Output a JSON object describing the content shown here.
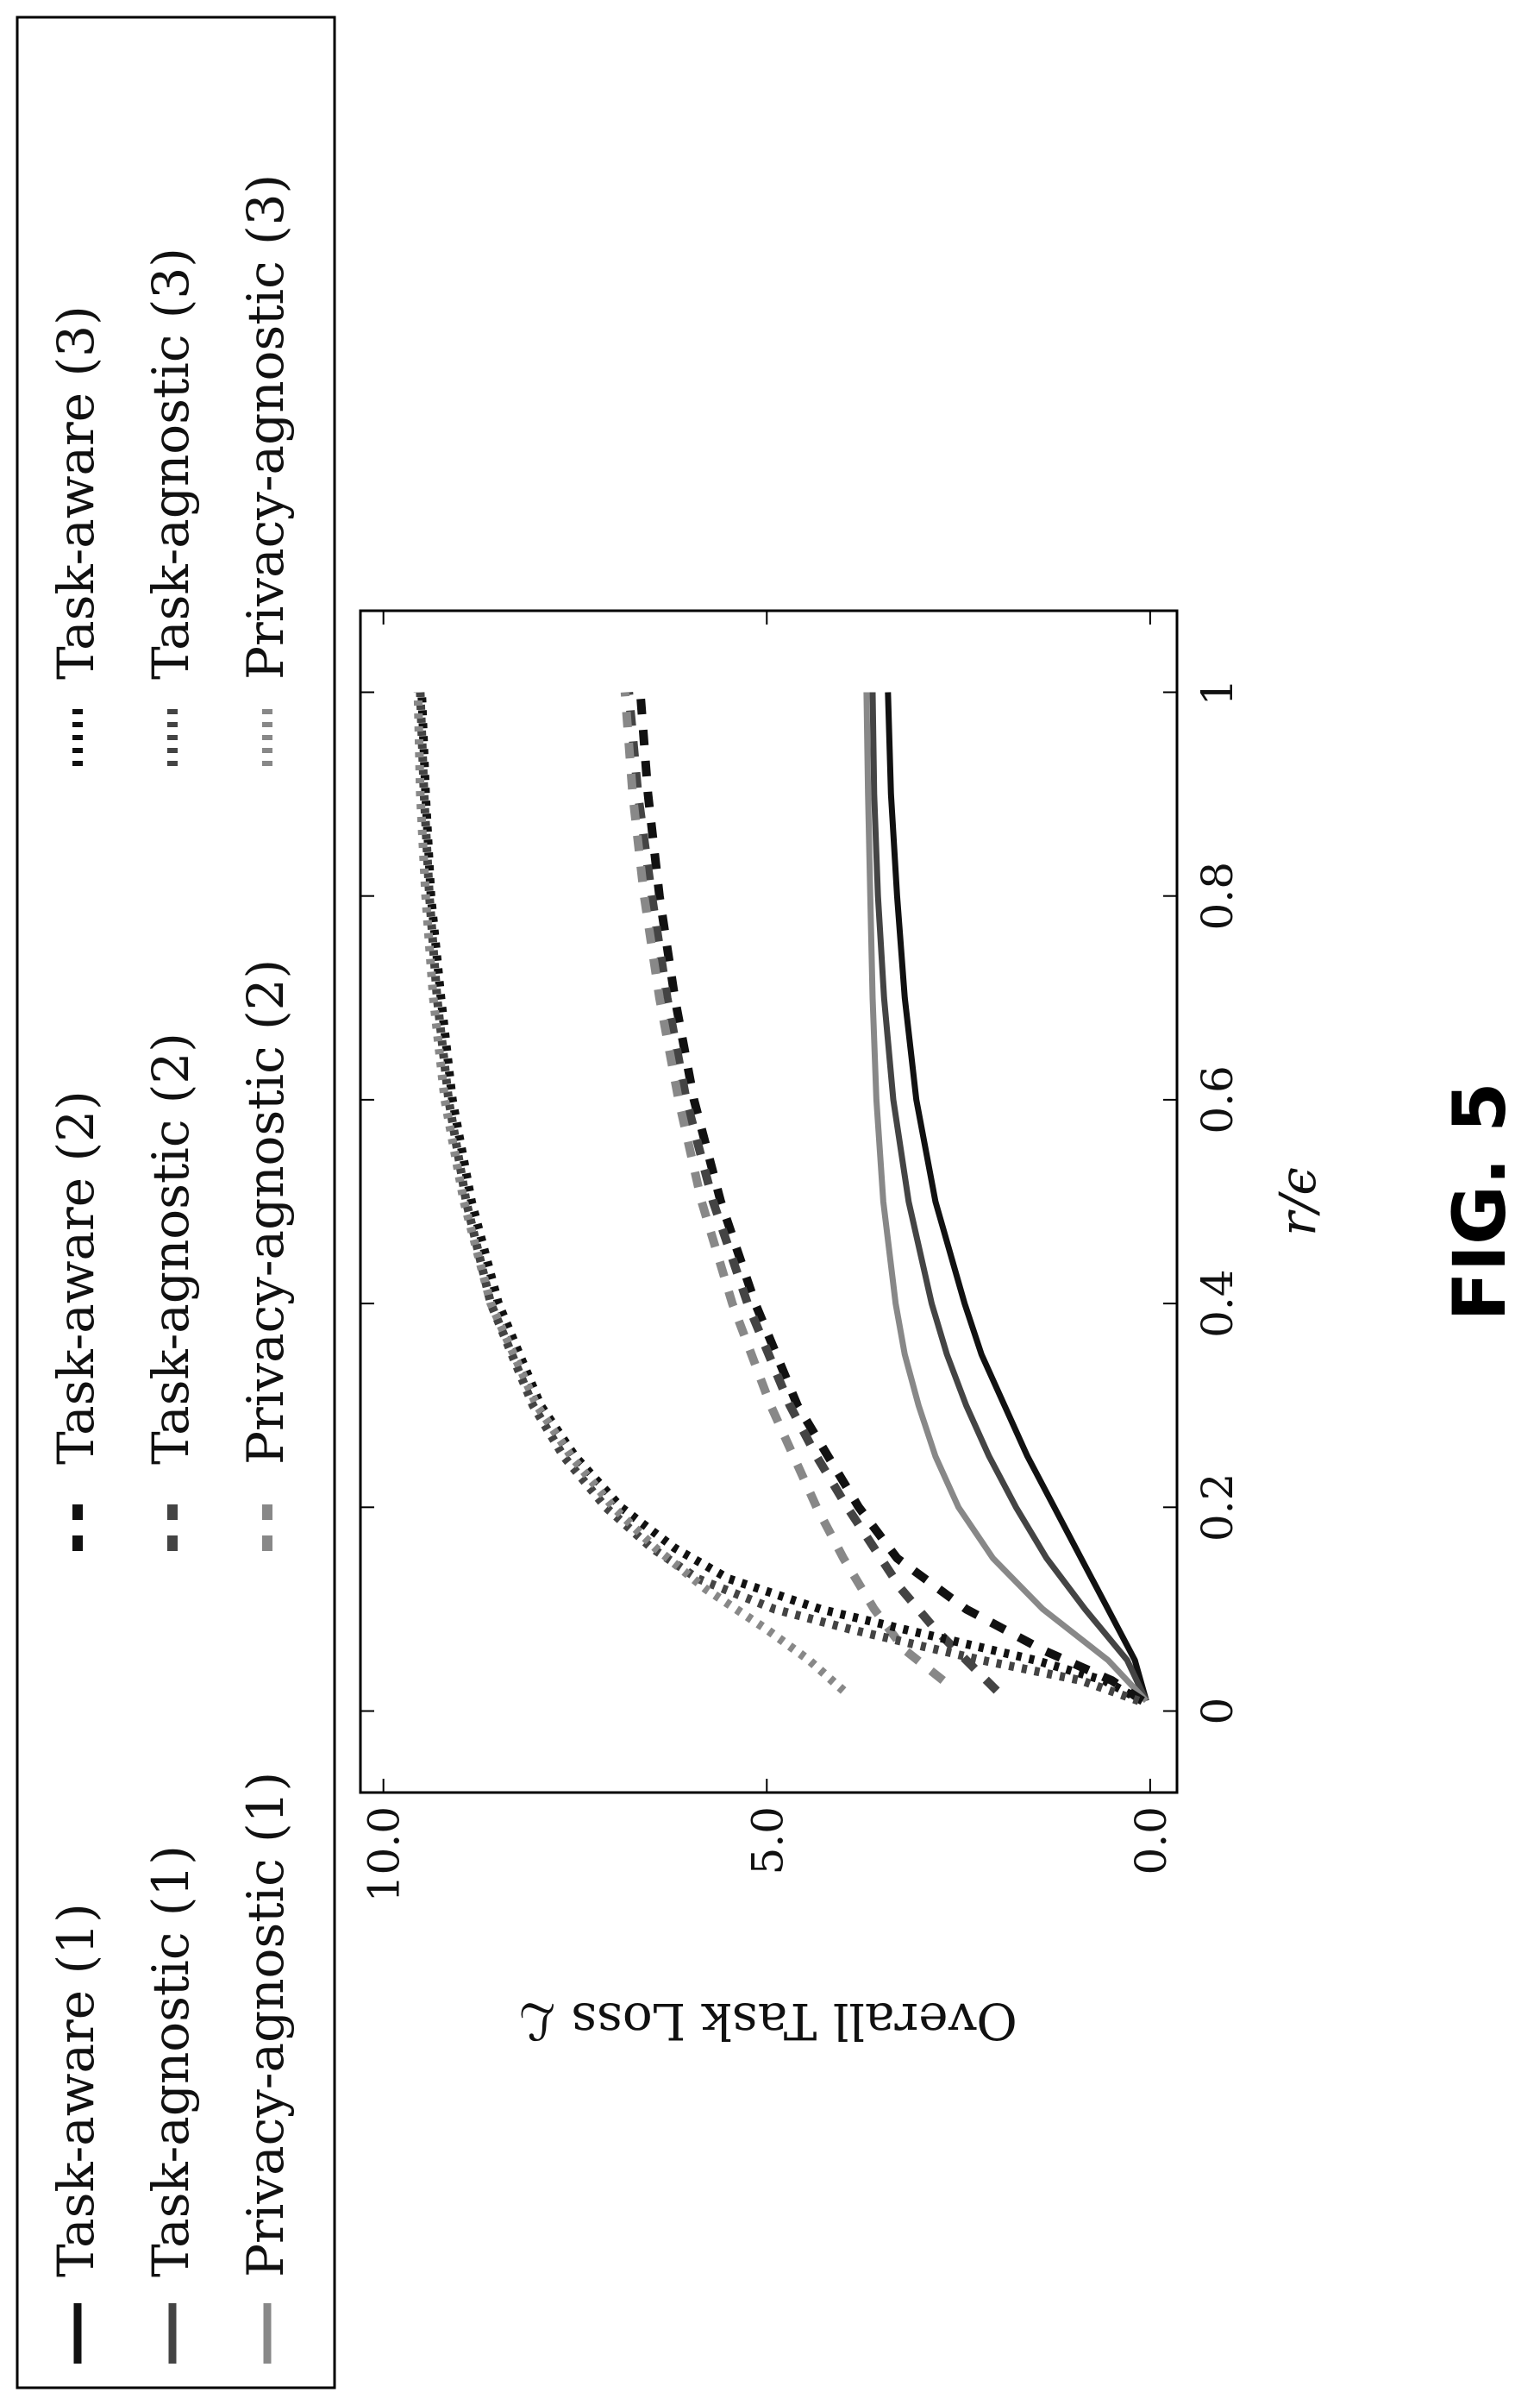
{
  "figure_label": "FIG. 5",
  "chart_data": {
    "type": "line",
    "title": "",
    "xlabel": "r/ϵ",
    "ylabel": "Overall Task Loss ℒ",
    "xlim": [
      -0.08,
      1.08
    ],
    "ylim": [
      -0.35,
      10.3
    ],
    "xticks": [
      0,
      0.2,
      0.4,
      0.6,
      0.8,
      1
    ],
    "xtick_labels": [
      "0",
      "0.2",
      "0.4",
      "0.6",
      "0.8",
      "1"
    ],
    "yticks": [
      0,
      5,
      10
    ],
    "ytick_labels": [
      "0.0",
      "5.0",
      "10.0"
    ],
    "grid": false,
    "legend_position": "top (outside plot)",
    "orientation_note": "figure rotated 90° counter-clockwise on the page",
    "series": [
      {
        "name": "Task-aware (1)",
        "style": "solid",
        "color": "#111111",
        "x": [
          0.01,
          0.05,
          0.1,
          0.15,
          0.2,
          0.25,
          0.3,
          0.35,
          0.4,
          0.5,
          0.6,
          0.7,
          0.8,
          0.9,
          1.0
        ],
        "y": [
          0.05,
          0.2,
          0.55,
          0.9,
          1.25,
          1.6,
          1.9,
          2.2,
          2.42,
          2.8,
          3.05,
          3.2,
          3.3,
          3.38,
          3.42
        ]
      },
      {
        "name": "Task-agnostic (1)",
        "style": "solid",
        "color": "#444444",
        "x": [
          0.01,
          0.05,
          0.1,
          0.15,
          0.2,
          0.25,
          0.3,
          0.35,
          0.4,
          0.5,
          0.6,
          0.7,
          0.8,
          0.9,
          1.0
        ],
        "y": [
          0.05,
          0.3,
          0.85,
          1.35,
          1.75,
          2.1,
          2.4,
          2.65,
          2.85,
          3.15,
          3.35,
          3.47,
          3.55,
          3.6,
          3.62
        ]
      },
      {
        "name": "Privacy-agnostic (1)",
        "style": "solid",
        "color": "#888888",
        "x": [
          0.01,
          0.05,
          0.1,
          0.15,
          0.2,
          0.25,
          0.3,
          0.35,
          0.4,
          0.5,
          0.6,
          0.7,
          0.8,
          0.9,
          1.0
        ],
        "y": [
          0.05,
          0.55,
          1.4,
          2.05,
          2.5,
          2.8,
          3.02,
          3.2,
          3.32,
          3.48,
          3.57,
          3.62,
          3.65,
          3.68,
          3.7
        ]
      },
      {
        "name": "Task-aware (2)",
        "style": "dashed",
        "color": "#111111",
        "x": [
          0.01,
          0.03,
          0.06,
          0.1,
          0.15,
          0.2,
          0.25,
          0.3,
          0.4,
          0.5,
          0.6,
          0.7,
          0.8,
          0.9,
          1.0
        ],
        "y": [
          0.1,
          0.5,
          1.4,
          2.4,
          3.3,
          3.8,
          4.2,
          4.6,
          5.15,
          5.6,
          5.95,
          6.2,
          6.4,
          6.55,
          6.65
        ]
      },
      {
        "name": "Task-agnostic (2)",
        "style": "dashed",
        "color": "#444444",
        "x": [
          0.02,
          0.05,
          0.08,
          0.12,
          0.16,
          0.2,
          0.25,
          0.3,
          0.4,
          0.5,
          0.6,
          0.7,
          0.8,
          0.9,
          1.0
        ],
        "y": [
          2.0,
          2.4,
          2.8,
          3.25,
          3.6,
          3.95,
          4.35,
          4.7,
          5.25,
          5.7,
          6.05,
          6.3,
          6.5,
          6.68,
          6.8
        ]
      },
      {
        "name": "Privacy-agnostic (2)",
        "style": "dashed",
        "color": "#888888",
        "x": [
          0.03,
          0.06,
          0.1,
          0.15,
          0.2,
          0.25,
          0.3,
          0.4,
          0.5,
          0.6,
          0.7,
          0.8,
          0.9,
          1.0
        ],
        "y": [
          2.7,
          3.2,
          3.6,
          4.0,
          4.35,
          4.65,
          4.95,
          5.45,
          5.85,
          6.15,
          6.4,
          6.6,
          6.75,
          6.85
        ]
      },
      {
        "name": "Task-aware (3)",
        "style": "dotted",
        "color": "#111111",
        "x": [
          0.01,
          0.03,
          0.05,
          0.08,
          0.1,
          0.13,
          0.16,
          0.2,
          0.25,
          0.3,
          0.4,
          0.5,
          0.6,
          0.7,
          0.8,
          0.9,
          1.0
        ],
        "y": [
          0.1,
          0.6,
          1.5,
          3.2,
          4.3,
          5.5,
          6.2,
          6.9,
          7.5,
          7.95,
          8.5,
          8.85,
          9.1,
          9.25,
          9.38,
          9.45,
          9.5
        ]
      },
      {
        "name": "Task-agnostic (3)",
        "style": "dotted",
        "color": "#444444",
        "x": [
          0.01,
          0.03,
          0.05,
          0.08,
          0.1,
          0.13,
          0.16,
          0.2,
          0.25,
          0.3,
          0.4,
          0.5,
          0.6,
          0.7,
          0.8,
          0.9,
          1.0
        ],
        "y": [
          0.15,
          0.9,
          2.2,
          3.9,
          4.9,
          5.9,
          6.5,
          7.1,
          7.65,
          8.05,
          8.6,
          8.92,
          9.15,
          9.3,
          9.4,
          9.47,
          9.52
        ]
      },
      {
        "name": "Privacy-agnostic (3)",
        "style": "dotted",
        "color": "#888888",
        "x": [
          0.02,
          0.05,
          0.08,
          0.12,
          0.16,
          0.2,
          0.25,
          0.3,
          0.4,
          0.5,
          0.6,
          0.7,
          0.8,
          0.9,
          1.0
        ],
        "y": [
          4.0,
          4.45,
          5.0,
          5.8,
          6.45,
          7.0,
          7.55,
          8.0,
          8.6,
          8.95,
          9.2,
          9.35,
          9.45,
          9.52,
          9.55
        ]
      }
    ]
  }
}
